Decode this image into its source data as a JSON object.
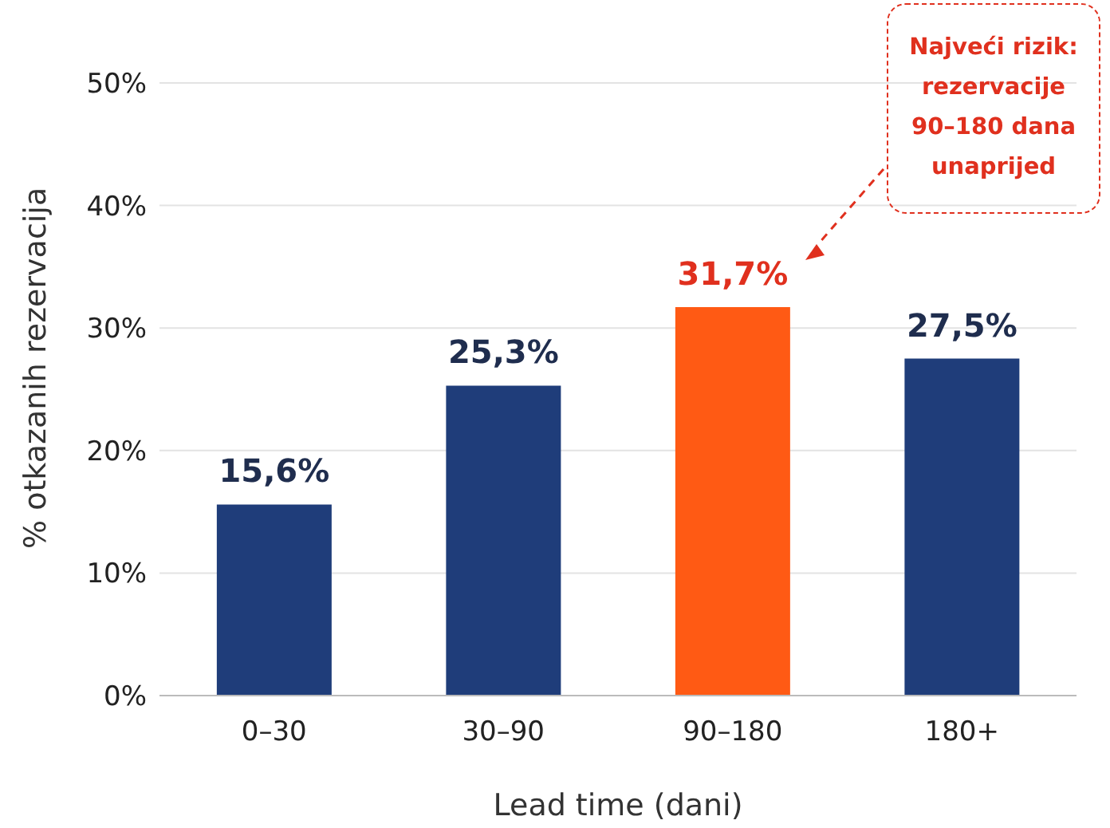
{
  "chart_data": {
    "type": "bar",
    "xlabel": "Lead time (dani)",
    "ylabel": "% otkazanih rezervacija",
    "categories": [
      "0–30",
      "30–90",
      "90–180",
      "180+"
    ],
    "values": [
      15.6,
      25.3,
      31.7,
      27.5
    ],
    "colors": [
      "#1f3d7a",
      "#1f3d7a",
      "#ff5a14",
      "#1f3d7a"
    ],
    "value_labels": [
      "15,6%",
      "25,3%",
      "31,7%",
      "27,5%"
    ],
    "ylim": [
      0,
      50
    ],
    "yticks": [
      {
        "value": 0,
        "label": "0%"
      },
      {
        "value": 10,
        "label": "10%"
      },
      {
        "value": 20,
        "label": "20%"
      },
      {
        "value": 30,
        "label": "30%"
      },
      {
        "value": 40,
        "label": "40%"
      },
      {
        "value": 50,
        "label": "50%"
      }
    ],
    "grid": "y",
    "annotations": [
      "Najveći rizik: rezervacije 90–180 dana unaprijed"
    ]
  }
}
